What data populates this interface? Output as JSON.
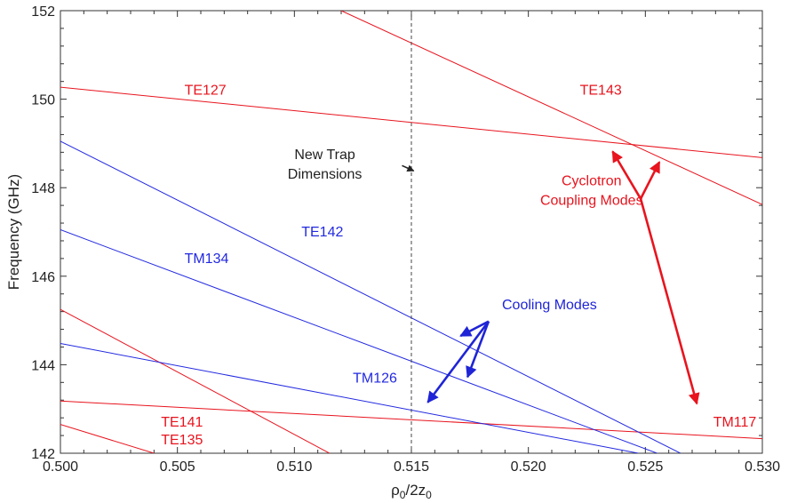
{
  "chart_data": {
    "type": "line",
    "xlabel": "ρ0/2z0",
    "xlabel_main": "ρ",
    "xlabel_sub1": "0",
    "xlabel_mid": "/2z",
    "xlabel_sub2": "0",
    "ylabel": "Frequency (GHz)",
    "xlim": [
      0.5,
      0.53
    ],
    "ylim": [
      142,
      152
    ],
    "xticks": [
      0.5,
      0.505,
      0.51,
      0.515,
      0.52,
      0.525,
      0.53
    ],
    "xtick_labels": [
      "0.500",
      "0.505",
      "0.510",
      "0.515",
      "0.520",
      "0.525",
      "0.530"
    ],
    "yticks": [
      142,
      144,
      146,
      148,
      150,
      152
    ],
    "ytick_labels": [
      "142",
      "144",
      "146",
      "148",
      "150",
      "152"
    ],
    "series": [
      {
        "name": "TE127",
        "color": "#e8141e",
        "x": [
          0.5,
          0.53
        ],
        "y": [
          150.27,
          148.68
        ],
        "label_at": [
          0.5053,
          150.1
        ]
      },
      {
        "name": "TE143",
        "color": "#e8141e",
        "x": [
          0.512,
          0.53
        ],
        "y": [
          152.0,
          147.62
        ],
        "label_at": [
          0.5222,
          150.1
        ]
      },
      {
        "name": "TE141",
        "color": "#e8141e",
        "x": [
          0.5,
          0.5115
        ],
        "y": [
          145.25,
          142.0
        ],
        "label_at": [
          0.5043,
          142.6
        ]
      },
      {
        "name": "TE135",
        "color": "#e8141e",
        "x": [
          0.5,
          0.504
        ],
        "y": [
          142.65,
          142.0
        ],
        "label_at": [
          0.5043,
          142.2
        ]
      },
      {
        "name": "TM117",
        "color": "#e8141e",
        "x": [
          0.5,
          0.53
        ],
        "y": [
          143.18,
          142.33
        ],
        "label_at": [
          0.5279,
          142.6
        ]
      },
      {
        "name": "TE142",
        "color": "#2229e0",
        "x": [
          0.5,
          0.5265
        ],
        "y": [
          149.05,
          142.0
        ],
        "label_at": [
          0.5103,
          146.9
        ]
      },
      {
        "name": "TM134",
        "color": "#2229e0",
        "x": [
          0.5,
          0.5255
        ],
        "y": [
          147.05,
          142.0
        ],
        "label_at": [
          0.5053,
          146.3
        ]
      },
      {
        "name": "TM126",
        "color": "#2229e0",
        "x": [
          0.5,
          0.5247
        ],
        "y": [
          144.48,
          142.0
        ],
        "label_at": [
          0.5125,
          143.6
        ]
      }
    ],
    "vline": {
      "x": 0.515,
      "style": "dashed",
      "color": "#444444"
    },
    "annotations": [
      {
        "id": "new-trap",
        "lines": [
          "New Trap",
          "Dimensions"
        ],
        "color": "#222222",
        "text_at": [
          0.5113,
          148.65
        ],
        "arrows": [
          {
            "from": [
              0.5146,
              148.5
            ],
            "to": [
              0.5151,
              148.38
            ]
          }
        ]
      },
      {
        "id": "cyclotron",
        "lines": [
          "Cyclotron",
          "Coupling Modes"
        ],
        "color": "#e8141e",
        "text_at": [
          0.5227,
          148.05
        ],
        "origin": [
          0.5248,
          147.75
        ],
        "arrows": [
          {
            "from": [
              0.5248,
              147.75
            ],
            "to": [
              0.5236,
              148.82
            ]
          },
          {
            "from": [
              0.5248,
              147.75
            ],
            "to": [
              0.5256,
              148.58
            ]
          },
          {
            "from": [
              0.5248,
              147.75
            ],
            "to": [
              0.5272,
              143.12
            ]
          }
        ]
      },
      {
        "id": "cooling",
        "lines": [
          "Cooling Modes"
        ],
        "color": "#1f24d6",
        "text_at": [
          0.5209,
          145.25
        ],
        "origin": [
          0.5183,
          144.98
        ],
        "arrows": [
          {
            "from": [
              0.5183,
              144.98
            ],
            "to": [
              0.5157,
              143.15
            ]
          },
          {
            "from": [
              0.5183,
              144.98
            ],
            "to": [
              0.5171,
              144.65
            ]
          },
          {
            "from": [
              0.5183,
              144.98
            ],
            "to": [
              0.5174,
              143.72
            ]
          }
        ]
      }
    ]
  }
}
